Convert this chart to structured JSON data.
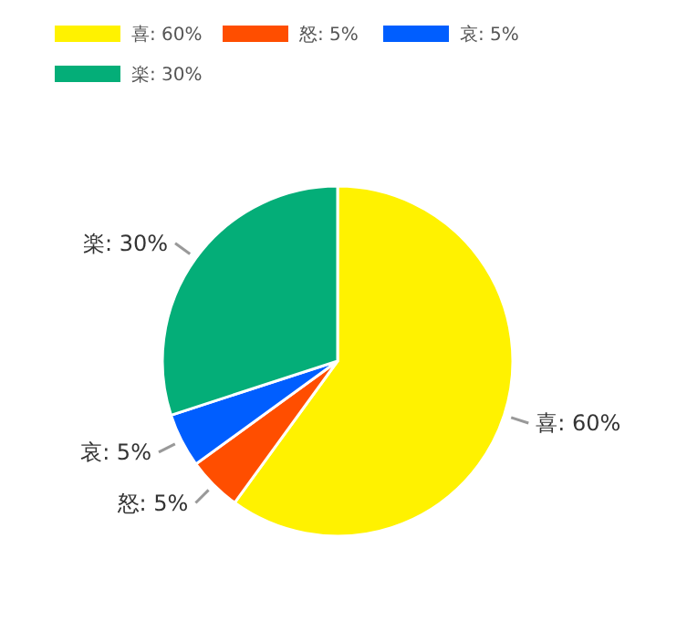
{
  "chart_data": {
    "type": "pie",
    "categories": [
      "喜: 60%",
      "怒: 5%",
      "哀: 5%",
      "楽: 30%"
    ],
    "values": [
      60,
      5,
      5,
      30
    ],
    "colors": [
      "#fff200",
      "#ff4e00",
      "#005eff",
      "#04ae78"
    ],
    "legend": "top left"
  }
}
